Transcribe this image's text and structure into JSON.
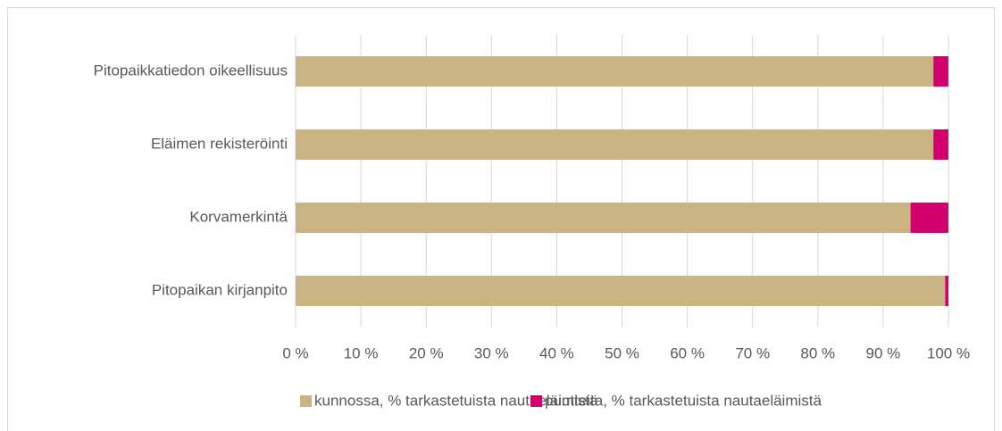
{
  "chart_data": {
    "type": "stacked-barh",
    "categories": [
      "Pitopaikkatiedon oikeellisuus",
      "Eläimen rekisteröinti",
      "Korvamerkintä",
      "Pitopaikan kirjanpito"
    ],
    "series": [
      {
        "name": "kunnossa, % tarkastetuista nautaeläimistä",
        "color": "#cbb483",
        "values": [
          97.7,
          97.7,
          94.2,
          99.5
        ]
      },
      {
        "name": "puutteita, % tarkastetuista nautaeläimistä",
        "color": "#d2006e",
        "values": [
          2.3,
          2.3,
          5.8,
          0.5
        ]
      }
    ],
    "xlim": [
      0,
      100
    ],
    "xticks": [
      {
        "value": 0,
        "label": "0 %"
      },
      {
        "value": 10,
        "label": "10 %"
      },
      {
        "value": 20,
        "label": "20 %"
      },
      {
        "value": 30,
        "label": "30 %"
      },
      {
        "value": 40,
        "label": "40 %"
      },
      {
        "value": 50,
        "label": "50 %"
      },
      {
        "value": 60,
        "label": "60 %"
      },
      {
        "value": 70,
        "label": "70 %"
      },
      {
        "value": 80,
        "label": "80 %"
      },
      {
        "value": 90,
        "label": "90 %"
      },
      {
        "value": 100,
        "label": "100 %"
      }
    ],
    "grid": true,
    "legend": "bottom"
  }
}
